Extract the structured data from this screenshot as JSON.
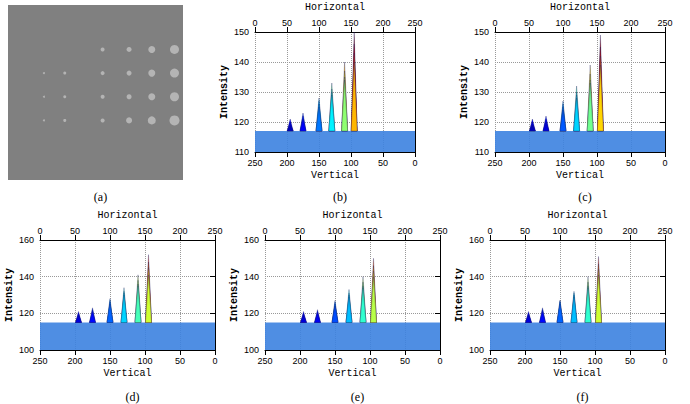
{
  "chart_data": [
    {
      "type": "image",
      "title": "(a)",
      "color": "#b4b4b4",
      "tick_labels": false,
      "xlim": [
        0,
        185
      ],
      "ylim": [
        0,
        185
      ],
      "x": [
        100,
        128,
        152,
        176,
        38,
        60,
        100,
        128,
        152,
        176,
        38,
        60,
        100,
        128,
        152,
        176,
        38,
        60,
        100,
        128,
        152,
        176
      ],
      "y": [
        47,
        47,
        47,
        47,
        72,
        72,
        72,
        72,
        72,
        72,
        97,
        97,
        97,
        97,
        97,
        97,
        122,
        122,
        122,
        122,
        122,
        122
      ],
      "sizes": [
        4,
        5,
        7,
        9,
        2,
        3,
        4,
        5,
        7,
        9,
        2,
        3,
        4,
        5,
        7,
        9,
        2,
        3,
        4,
        6,
        8,
        10
      ]
    },
    {
      "type": "spikes",
      "title": "(b)",
      "xlabel": "Vertical",
      "ylabel": "Intensity",
      "zlabel": "Horizontal",
      "grid": true,
      "xlim": [
        0,
        250
      ],
      "xticks": [
        0,
        50,
        100,
        150,
        200,
        250
      ],
      "ylim": [
        110,
        150
      ],
      "yticks": [
        110,
        120,
        130,
        140,
        150
      ],
      "zlim": [
        0,
        250
      ],
      "zticks": [
        0,
        50,
        100,
        150,
        200,
        250
      ],
      "floor": 117,
      "x": [
        150,
        130,
        110,
        95,
        195,
        175,
        150,
        130,
        110,
        95,
        195,
        175,
        150,
        130,
        110,
        95,
        195,
        175,
        150,
        130,
        110,
        95
      ],
      "values": [
        128,
        133,
        140,
        150,
        121,
        123,
        127,
        131,
        137,
        146,
        120,
        122,
        126,
        130,
        135,
        143,
        119,
        121,
        125,
        129,
        134,
        140
      ]
    },
    {
      "type": "spikes",
      "title": "(c)",
      "xlabel": "Vertical",
      "ylabel": "Intensity",
      "zlabel": "Horizontal",
      "grid": true,
      "xlim": [
        0,
        250
      ],
      "xticks": [
        0,
        50,
        100,
        150,
        200,
        250
      ],
      "ylim": [
        110,
        150
      ],
      "yticks": [
        110,
        120,
        130,
        140,
        150
      ],
      "zlim": [
        0,
        250
      ],
      "zticks": [
        0,
        50,
        100,
        150,
        200,
        250
      ],
      "floor": 117,
      "x": [
        150,
        130,
        110,
        95,
        195,
        175,
        150,
        130,
        110,
        95,
        195,
        175,
        150,
        130,
        110,
        95,
        195,
        175,
        150,
        130,
        110,
        95
      ],
      "values": [
        127,
        132,
        139,
        149,
        121,
        122,
        126,
        130,
        136,
        145,
        120,
        121,
        125,
        129,
        134,
        142,
        119,
        120,
        124,
        128,
        133,
        139
      ]
    },
    {
      "type": "spikes",
      "title": "(d)",
      "xlabel": "Vertical",
      "ylabel": "Intensity",
      "zlabel": "Horizontal",
      "grid": true,
      "xlim": [
        0,
        250
      ],
      "xticks": [
        0,
        50,
        100,
        150,
        200,
        250
      ],
      "ylim": [
        100,
        160
      ],
      "yticks": [
        100,
        120,
        140,
        160
      ],
      "zlim": [
        0,
        250
      ],
      "zticks": [
        0,
        50,
        100,
        150,
        200,
        250
      ],
      "floor": 115,
      "x": [
        150,
        130,
        110,
        95,
        195,
        175,
        150,
        130,
        110,
        95,
        195,
        175,
        150,
        130,
        110,
        95,
        195,
        175,
        150,
        130,
        110,
        95
      ],
      "values": [
        128,
        134,
        141,
        152,
        121,
        123,
        127,
        132,
        138,
        148,
        120,
        122,
        126,
        131,
        136,
        145,
        119,
        121,
        125,
        130,
        135,
        141
      ]
    },
    {
      "type": "spikes",
      "title": "(e)",
      "xlabel": "Vertical",
      "ylabel": "Intensity",
      "zlabel": "Horizontal",
      "grid": true,
      "xlim": [
        0,
        250
      ],
      "xticks": [
        0,
        50,
        100,
        150,
        200,
        250
      ],
      "ylim": [
        100,
        160
      ],
      "yticks": [
        100,
        120,
        140,
        160
      ],
      "zlim": [
        0,
        250
      ],
      "zticks": [
        0,
        50,
        100,
        150,
        200,
        250
      ],
      "floor": 115,
      "x": [
        150,
        130,
        110,
        95,
        195,
        175,
        150,
        130,
        110,
        95,
        195,
        175,
        150,
        130,
        110,
        95,
        195,
        175,
        150,
        130,
        110,
        95
      ],
      "values": [
        127,
        133,
        140,
        150,
        121,
        122,
        126,
        131,
        137,
        146,
        120,
        121,
        125,
        130,
        135,
        143,
        119,
        120,
        124,
        129,
        134,
        140
      ]
    },
    {
      "type": "spikes",
      "title": "(f)",
      "xlabel": "Vertical",
      "ylabel": "Intensity",
      "zlabel": "Horizontal",
      "grid": true,
      "xlim": [
        0,
        250
      ],
      "xticks": [
        0,
        50,
        100,
        150,
        200,
        250
      ],
      "ylim": [
        100,
        160
      ],
      "yticks": [
        100,
        120,
        140,
        160
      ],
      "zlim": [
        0,
        250
      ],
      "zticks": [
        0,
        50,
        100,
        150,
        200,
        250
      ],
      "floor": 115,
      "x": [
        150,
        130,
        110,
        95,
        195,
        175,
        150,
        130,
        110,
        95,
        195,
        175,
        150,
        130,
        110,
        95,
        195,
        175,
        150,
        130,
        110,
        95
      ],
      "values": [
        127,
        132,
        140,
        151,
        121,
        123,
        127,
        131,
        137,
        147,
        120,
        122,
        126,
        130,
        135,
        144,
        119,
        121,
        125,
        129,
        134,
        141
      ]
    }
  ]
}
